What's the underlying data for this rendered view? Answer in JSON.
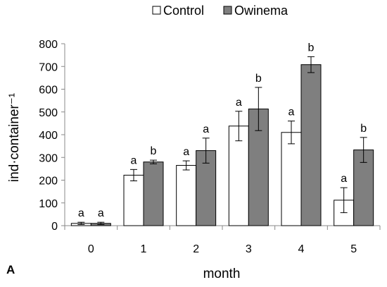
{
  "chart_data": {
    "type": "bar",
    "panel_label": "A",
    "xlabel": "month",
    "ylabel": "ind·container⁻¹",
    "ylim": [
      0,
      800
    ],
    "yticks": [
      0,
      100,
      200,
      300,
      400,
      500,
      600,
      700,
      800
    ],
    "categories": [
      "0",
      "1",
      "2",
      "3",
      "4",
      "5"
    ],
    "legend_position": "top-center",
    "grid": false,
    "series": [
      {
        "name": "Control",
        "color": "#ffffff",
        "values": [
          10,
          222,
          265,
          438,
          410,
          112
        ],
        "errors": [
          5,
          25,
          20,
          65,
          50,
          55
        ],
        "letters": [
          "a",
          "a",
          "a",
          "a",
          "a",
          "a"
        ]
      },
      {
        "name": "Owinema",
        "color": "#7f7f7f",
        "values": [
          10,
          280,
          330,
          513,
          708,
          333
        ],
        "errors": [
          5,
          8,
          55,
          95,
          35,
          55
        ],
        "letters": [
          "a",
          "b",
          "a",
          "b",
          "b",
          "b"
        ]
      }
    ]
  }
}
